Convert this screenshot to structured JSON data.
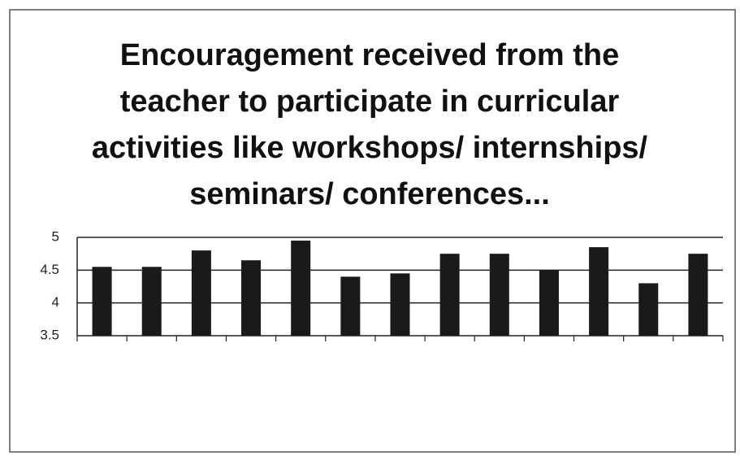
{
  "chart_data": {
    "type": "bar",
    "title": "Encouragement received from the teacher to participate in curricular activities like workshops/ internships/ seminars/ conferences...",
    "categories": [
      null,
      null,
      null,
      null,
      null,
      null,
      null,
      null,
      null,
      null,
      null,
      null,
      null
    ],
    "values": [
      4.55,
      4.55,
      4.8,
      4.65,
      4.95,
      4.4,
      4.45,
      4.75,
      4.75,
      4.5,
      4.85,
      4.3,
      4.75
    ],
    "color": "#1a1a1a",
    "ylim": [
      3.5,
      5
    ],
    "yticks": [
      3.5,
      4,
      4.5,
      5
    ],
    "grid": true
  }
}
